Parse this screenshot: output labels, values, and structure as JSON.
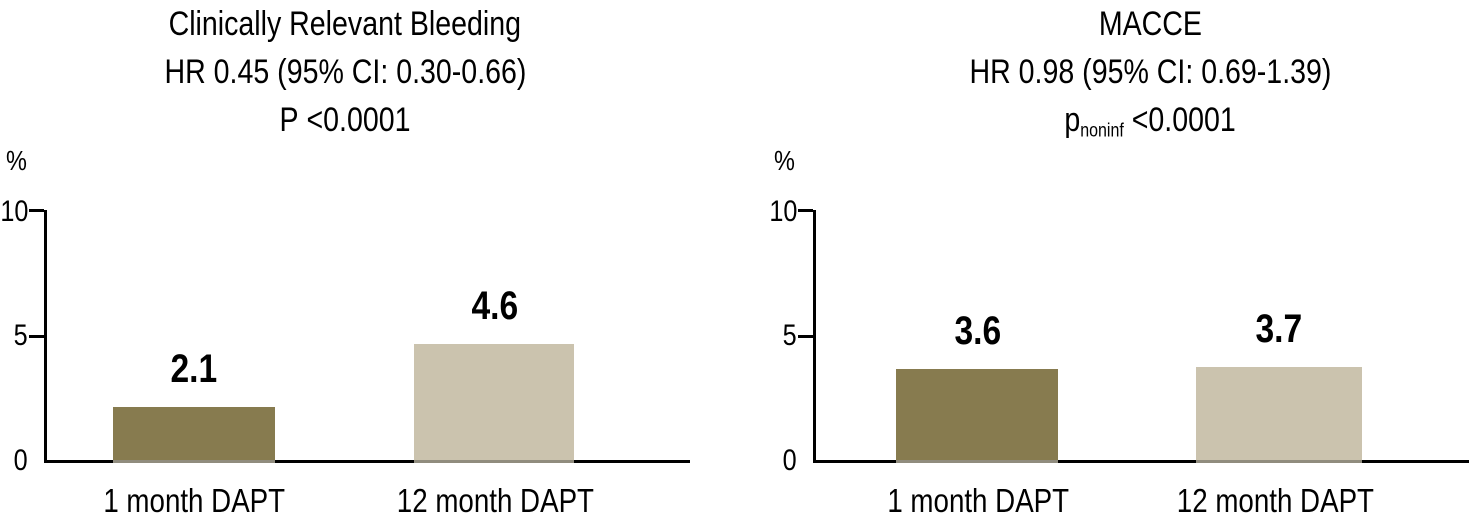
{
  "chart_data": [
    {
      "type": "bar",
      "title": "Clinically Relevant Bleeding",
      "hr_line": "HR 0.45 (95% CI: 0.30-0.66)",
      "p_parts": {
        "prefix": "P",
        "sub": "",
        "rest": " <0.0001"
      },
      "ylabel": "%",
      "ylim": [
        0,
        10
      ],
      "yticks": [
        "0",
        "5",
        "10"
      ],
      "categories": [
        "1 month DAPT",
        "12 month DAPT"
      ],
      "values": [
        2.1,
        4.6
      ],
      "value_labels": [
        "2.1",
        "4.6"
      ],
      "bar_colors": [
        "#877B4F",
        "#CBC3AE"
      ],
      "grid": false,
      "legend": false
    },
    {
      "type": "bar",
      "title": "MACCE",
      "hr_line": "HR 0.98 (95% CI: 0.69-1.39)",
      "p_parts": {
        "prefix": "p",
        "sub": "noninf",
        "rest": " <0.0001"
      },
      "ylabel": "%",
      "ylim": [
        0,
        10
      ],
      "yticks": [
        "0",
        "5",
        "10"
      ],
      "categories": [
        "1 month DAPT",
        "12 month DAPT"
      ],
      "values": [
        3.6,
        3.7
      ],
      "value_labels": [
        "3.6",
        "3.7"
      ],
      "bar_colors": [
        "#877B4F",
        "#CBC3AE"
      ],
      "grid": false,
      "legend": false
    }
  ],
  "colors": {
    "bar_dark": "#877B4F",
    "bar_light": "#CBC3AE",
    "axis": "#000000",
    "text": "#000000",
    "background": "#FFFFFF"
  }
}
